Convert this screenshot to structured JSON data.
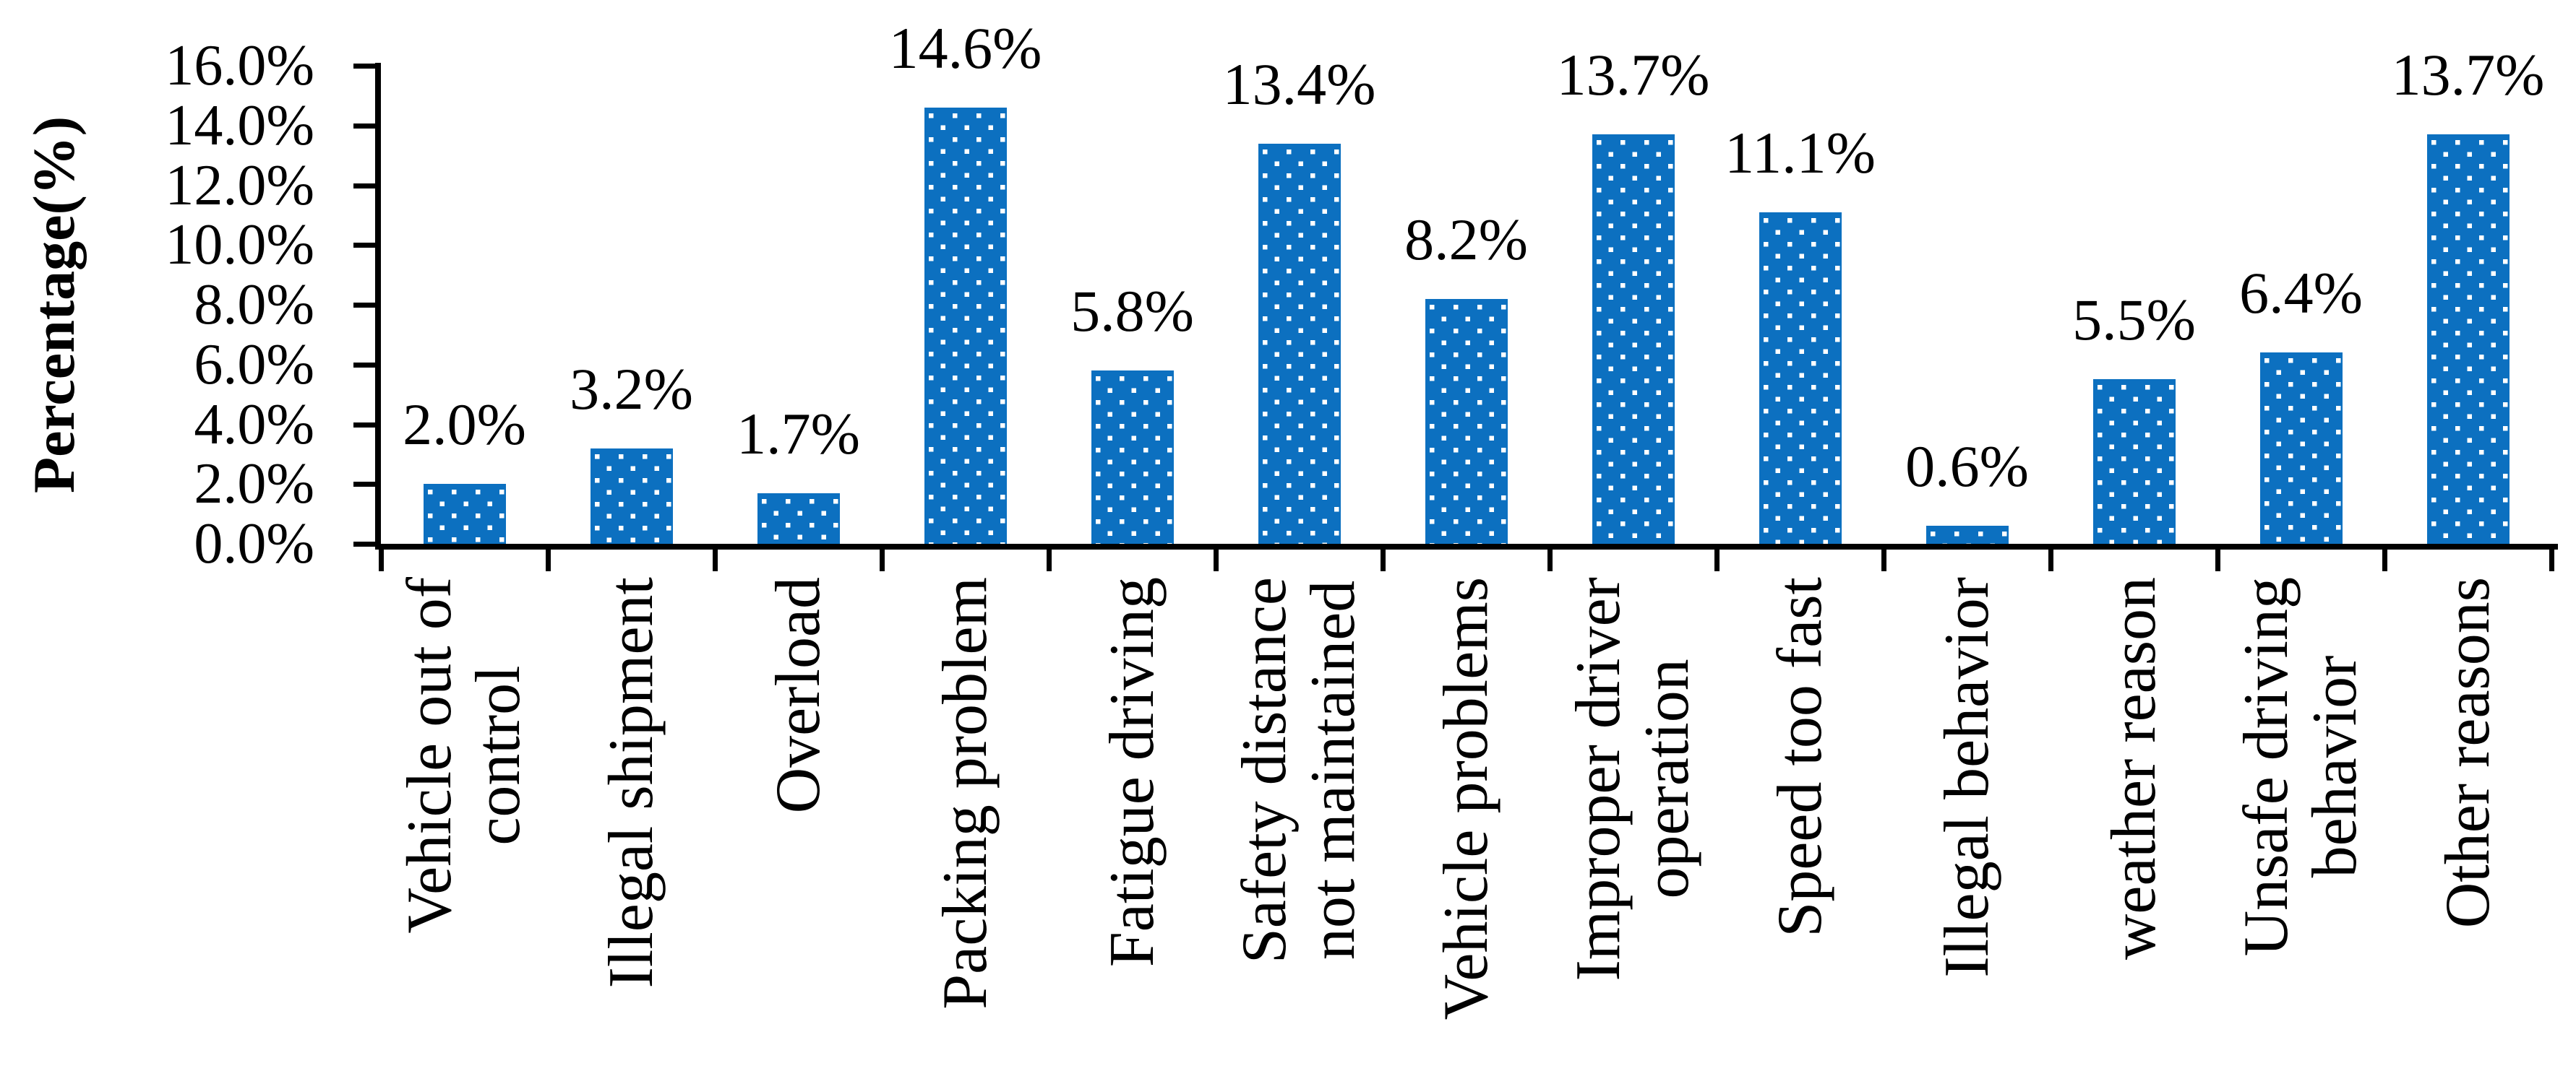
{
  "figure": {
    "background": "#ffffff",
    "axis_color": "#000000"
  },
  "chart_data": {
    "type": "bar",
    "title": "",
    "xlabel": "",
    "ylabel": "Percentage(%)",
    "ylim": [
      0,
      16
    ],
    "ytick_step": 2,
    "ytick_labels_top_to_bottom": [
      "16.0%",
      "14.0%",
      "12.0%",
      "10.0%",
      "8.0%",
      "6.0%",
      "4.0%",
      "2.0%",
      "0.0%"
    ],
    "grid": false,
    "legend_position": "none",
    "bar_color": "#0C70C0",
    "bar_pattern": "white-square-dots",
    "pattern_dot_color": "#ffffff",
    "categories": [
      "Vehicle out of\ncontrol",
      "Illegal shipment",
      "Overload",
      "Packing problem",
      "Fatigue driving",
      "Safety distance\nnot maintained",
      "Vehicle problems",
      "Improper driver\noperation",
      "Speed too fast",
      "Illegal behavior",
      "weather reason",
      "Unsafe driving\nbehavior",
      "Other reasons"
    ],
    "values": [
      2.0,
      3.2,
      1.7,
      14.6,
      5.8,
      13.4,
      8.2,
      13.7,
      11.1,
      0.6,
      5.5,
      6.4,
      13.7
    ],
    "data_labels": [
      "2.0%",
      "3.2%",
      "1.7%",
      "14.6%",
      "5.8%",
      "13.4%",
      "8.2%",
      "13.7%",
      "11.1%",
      "0.6%",
      "5.5%",
      "6.4%",
      "13.7%"
    ]
  }
}
